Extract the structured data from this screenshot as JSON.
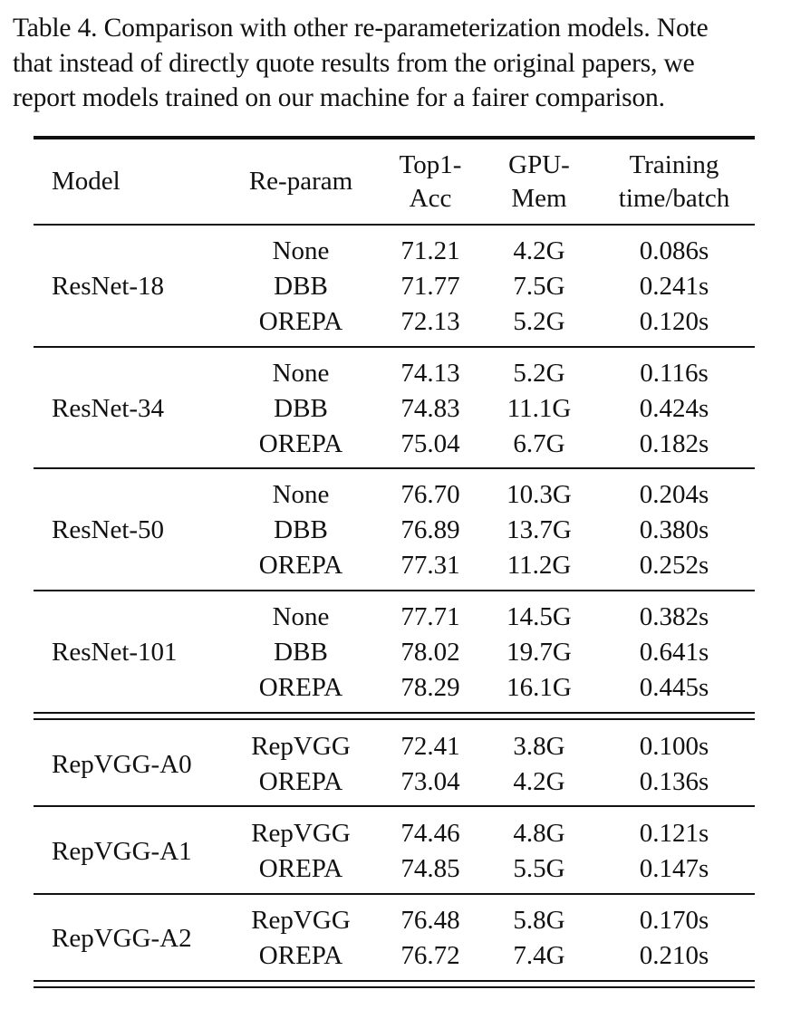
{
  "caption": {
    "lines": [
      "Table 4. Comparison with other re-parameterization models. Note",
      "that instead of directly quote results from the original papers, we",
      "report models trained on our machine for a fairer comparison."
    ]
  },
  "table": {
    "headers": {
      "model": "Model",
      "reparam": "Re-param",
      "top1_l1": "Top1-",
      "top1_l2": "Acc",
      "gpu_l1": "GPU-",
      "gpu_l2": "Mem",
      "time_l1": "Training",
      "time_l2": "time/batch"
    },
    "groups": [
      {
        "model": "ResNet-18",
        "rows": [
          {
            "reparam": "None",
            "top1": "71.21",
            "gpu": "4.2G",
            "time": "0.086s"
          },
          {
            "reparam": "DBB",
            "top1": "71.77",
            "gpu": "7.5G",
            "time": "0.241s"
          },
          {
            "reparam": "OREPA",
            "top1": "72.13",
            "gpu": "5.2G",
            "time": "0.120s"
          }
        ]
      },
      {
        "model": "ResNet-34",
        "rows": [
          {
            "reparam": "None",
            "top1": "74.13",
            "gpu": "5.2G",
            "time": "0.116s"
          },
          {
            "reparam": "DBB",
            "top1": "74.83",
            "gpu": "11.1G",
            "time": "0.424s"
          },
          {
            "reparam": "OREPA",
            "top1": "75.04",
            "gpu": "6.7G",
            "time": "0.182s"
          }
        ]
      },
      {
        "model": "ResNet-50",
        "rows": [
          {
            "reparam": "None",
            "top1": "76.70",
            "gpu": "10.3G",
            "time": "0.204s"
          },
          {
            "reparam": "DBB",
            "top1": "76.89",
            "gpu": "13.7G",
            "time": "0.380s"
          },
          {
            "reparam": "OREPA",
            "top1": "77.31",
            "gpu": "11.2G",
            "time": "0.252s"
          }
        ]
      },
      {
        "model": "ResNet-101",
        "rows": [
          {
            "reparam": "None",
            "top1": "77.71",
            "gpu": "14.5G",
            "time": "0.382s"
          },
          {
            "reparam": "DBB",
            "top1": "78.02",
            "gpu": "19.7G",
            "time": "0.641s"
          },
          {
            "reparam": "OREPA",
            "top1": "78.29",
            "gpu": "16.1G",
            "time": "0.445s"
          }
        ]
      },
      {
        "model": "RepVGG-A0",
        "rows": [
          {
            "reparam": "RepVGG",
            "top1": "72.41",
            "gpu": "3.8G",
            "time": "0.100s"
          },
          {
            "reparam": "OREPA",
            "top1": "73.04",
            "gpu": "4.2G",
            "time": "0.136s"
          }
        ]
      },
      {
        "model": "RepVGG-A1",
        "rows": [
          {
            "reparam": "RepVGG",
            "top1": "74.46",
            "gpu": "4.8G",
            "time": "0.121s"
          },
          {
            "reparam": "OREPA",
            "top1": "74.85",
            "gpu": "5.5G",
            "time": "0.147s"
          }
        ]
      },
      {
        "model": "RepVGG-A2",
        "rows": [
          {
            "reparam": "RepVGG",
            "top1": "76.48",
            "gpu": "5.8G",
            "time": "0.170s"
          },
          {
            "reparam": "OREPA",
            "top1": "76.72",
            "gpu": "7.4G",
            "time": "0.210s"
          }
        ]
      }
    ]
  }
}
